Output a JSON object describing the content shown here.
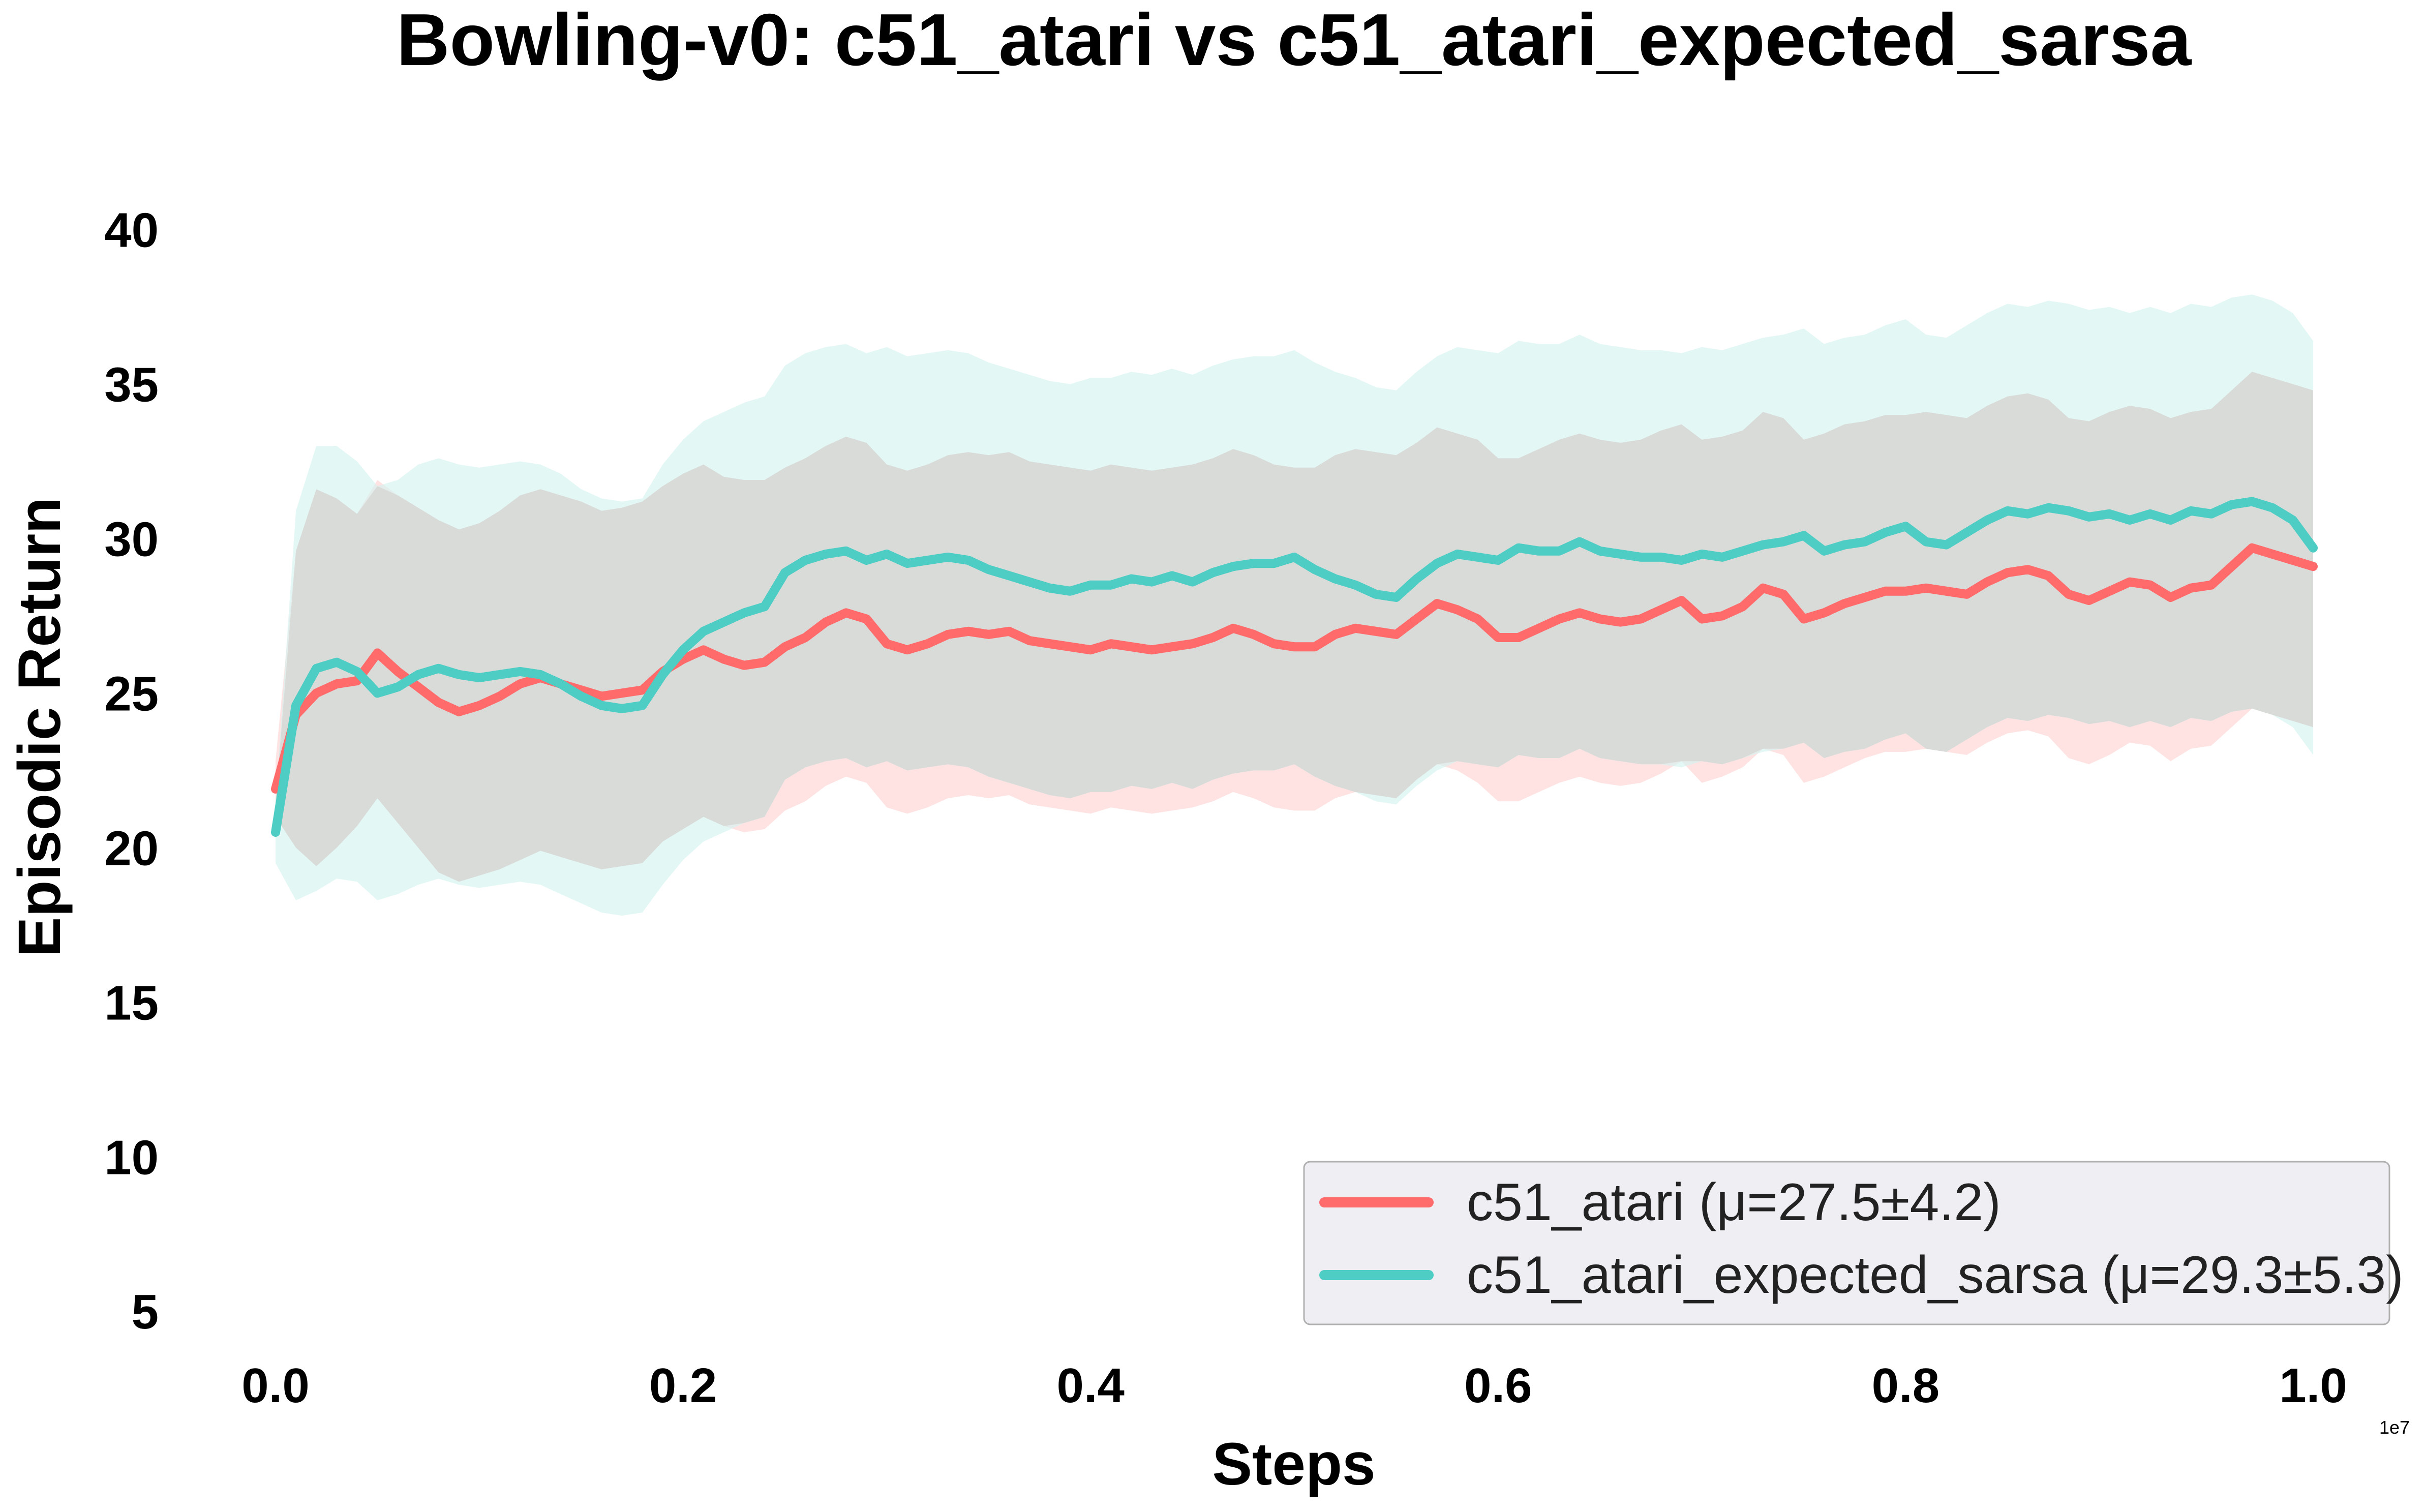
{
  "chart_data": {
    "type": "line",
    "title": "Bowling-v0: c51_atari vs c51_atari_expected_sarsa",
    "xlabel": "Steps",
    "ylabel": "Episodic Return",
    "x_exponent_label": "1e7",
    "xlim": [
      0.0,
      1.0
    ],
    "ylim": [
      4,
      42
    ],
    "x_ticks": [
      0.0,
      0.2,
      0.4,
      0.6,
      0.8,
      1.0
    ],
    "x_tick_labels": [
      "0.0",
      "0.2",
      "0.4",
      "0.6",
      "0.8",
      "1.0"
    ],
    "y_ticks": [
      5,
      10,
      15,
      20,
      25,
      30,
      35,
      40
    ],
    "y_tick_labels": [
      "5",
      "10",
      "15",
      "20",
      "25",
      "30",
      "35",
      "40"
    ],
    "grid": false,
    "legend_position": "bottom-right",
    "shaded_overlap_color": "#d9dbd9",
    "series": [
      {
        "name": "c51_atari",
        "legend_label": "c51_atari (μ=27.5±4.2)",
        "color": "#ff6b6b",
        "band_color": "#ffe0e0",
        "x": [
          0.0,
          0.01,
          0.02,
          0.03,
          0.04,
          0.05,
          0.06,
          0.07,
          0.08,
          0.09,
          0.1,
          0.11,
          0.12,
          0.13,
          0.14,
          0.15,
          0.16,
          0.17,
          0.18,
          0.19,
          0.2,
          0.21,
          0.22,
          0.23,
          0.24,
          0.25,
          0.26,
          0.27,
          0.28,
          0.29,
          0.3,
          0.31,
          0.32,
          0.33,
          0.34,
          0.35,
          0.36,
          0.37,
          0.38,
          0.39,
          0.4,
          0.41,
          0.42,
          0.43,
          0.44,
          0.45,
          0.46,
          0.47,
          0.48,
          0.49,
          0.5,
          0.51,
          0.52,
          0.53,
          0.54,
          0.55,
          0.56,
          0.57,
          0.58,
          0.59,
          0.6,
          0.61,
          0.62,
          0.63,
          0.64,
          0.65,
          0.66,
          0.67,
          0.68,
          0.69,
          0.7,
          0.71,
          0.72,
          0.73,
          0.74,
          0.75,
          0.76,
          0.77,
          0.78,
          0.79,
          0.8,
          0.81,
          0.82,
          0.83,
          0.84,
          0.85,
          0.86,
          0.87,
          0.88,
          0.89,
          0.9,
          0.91,
          0.92,
          0.93,
          0.94,
          0.95,
          0.96,
          0.97,
          0.98,
          0.99,
          1.0
        ],
        "y": [
          21.9,
          24.3,
          25.0,
          25.3,
          25.4,
          26.3,
          25.7,
          25.2,
          24.7,
          24.4,
          24.6,
          24.9,
          25.3,
          25.5,
          25.3,
          25.1,
          24.9,
          25.0,
          25.1,
          25.7,
          26.1,
          26.4,
          26.1,
          25.9,
          26.0,
          26.5,
          26.8,
          27.3,
          27.6,
          27.4,
          26.6,
          26.4,
          26.6,
          26.9,
          27.0,
          26.9,
          27.0,
          26.7,
          26.6,
          26.5,
          26.4,
          26.6,
          26.5,
          26.4,
          26.5,
          26.6,
          26.8,
          27.1,
          26.9,
          26.6,
          26.5,
          26.5,
          26.9,
          27.1,
          27.0,
          26.9,
          27.4,
          27.9,
          27.7,
          27.4,
          26.8,
          26.8,
          27.1,
          27.4,
          27.6,
          27.4,
          27.3,
          27.4,
          27.7,
          28.0,
          27.4,
          27.5,
          27.8,
          28.4,
          28.2,
          27.4,
          27.6,
          27.9,
          28.1,
          28.3,
          28.3,
          28.4,
          28.3,
          28.2,
          28.6,
          28.9,
          29.0,
          28.8,
          28.2,
          28.0,
          28.3,
          28.6,
          28.5,
          28.1,
          28.4,
          28.5,
          29.1,
          29.7,
          29.5,
          29.3,
          29.1
        ],
        "lower": [
          21.0,
          20.0,
          19.4,
          20.0,
          20.7,
          21.6,
          20.8,
          20.0,
          19.2,
          18.9,
          19.1,
          19.3,
          19.6,
          19.9,
          19.7,
          19.5,
          19.3,
          19.4,
          19.5,
          20.2,
          20.6,
          21.0,
          20.7,
          20.5,
          20.6,
          21.2,
          21.5,
          22.0,
          22.3,
          22.1,
          21.3,
          21.1,
          21.3,
          21.6,
          21.7,
          21.6,
          21.7,
          21.4,
          21.3,
          21.2,
          21.1,
          21.3,
          21.2,
          21.1,
          21.2,
          21.3,
          21.5,
          21.8,
          21.6,
          21.3,
          21.2,
          21.2,
          21.6,
          21.8,
          21.7,
          21.6,
          22.2,
          22.7,
          22.5,
          22.1,
          21.5,
          21.5,
          21.8,
          22.1,
          22.3,
          22.1,
          22.0,
          22.1,
          22.4,
          22.8,
          22.1,
          22.3,
          22.6,
          23.2,
          23.0,
          22.1,
          22.3,
          22.6,
          22.9,
          23.1,
          23.1,
          23.2,
          23.1,
          23.0,
          23.4,
          23.7,
          23.8,
          23.6,
          22.9,
          22.7,
          23.0,
          23.4,
          23.3,
          22.8,
          23.2,
          23.3,
          23.9,
          24.5,
          24.3,
          24.1,
          23.9
        ],
        "upper": [
          22.8,
          29.6,
          31.6,
          31.3,
          30.8,
          31.9,
          31.4,
          31.0,
          30.6,
          30.3,
          30.5,
          30.9,
          31.4,
          31.6,
          31.4,
          31.2,
          30.9,
          31.0,
          31.2,
          31.7,
          32.1,
          32.4,
          32.0,
          31.9,
          31.9,
          32.3,
          32.6,
          33.0,
          33.3,
          33.1,
          32.4,
          32.2,
          32.4,
          32.7,
          32.8,
          32.7,
          32.8,
          32.5,
          32.4,
          32.3,
          32.2,
          32.4,
          32.3,
          32.2,
          32.3,
          32.4,
          32.6,
          32.9,
          32.7,
          32.4,
          32.3,
          32.3,
          32.7,
          32.9,
          32.8,
          32.7,
          33.1,
          33.6,
          33.4,
          33.2,
          32.6,
          32.6,
          32.9,
          33.2,
          33.4,
          33.2,
          33.1,
          33.2,
          33.5,
          33.7,
          33.2,
          33.3,
          33.5,
          34.1,
          33.9,
          33.2,
          33.4,
          33.7,
          33.8,
          34.0,
          34.0,
          34.1,
          34.0,
          33.9,
          34.3,
          34.6,
          34.7,
          34.5,
          33.9,
          33.8,
          34.1,
          34.3,
          34.2,
          33.9,
          34.1,
          34.2,
          34.8,
          35.4,
          35.2,
          35.0,
          34.8
        ]
      },
      {
        "name": "c51_atari_expected_sarsa",
        "legend_label": "c51_atari_expected_sarsa (μ=29.3±5.3)",
        "color": "#4ecdc4",
        "band_color": "#d4f3f0",
        "x": [
          0.0,
          0.01,
          0.02,
          0.03,
          0.04,
          0.05,
          0.06,
          0.07,
          0.08,
          0.09,
          0.1,
          0.11,
          0.12,
          0.13,
          0.14,
          0.15,
          0.16,
          0.17,
          0.18,
          0.19,
          0.2,
          0.21,
          0.22,
          0.23,
          0.24,
          0.25,
          0.26,
          0.27,
          0.28,
          0.29,
          0.3,
          0.31,
          0.32,
          0.33,
          0.34,
          0.35,
          0.36,
          0.37,
          0.38,
          0.39,
          0.4,
          0.41,
          0.42,
          0.43,
          0.44,
          0.45,
          0.46,
          0.47,
          0.48,
          0.49,
          0.5,
          0.51,
          0.52,
          0.53,
          0.54,
          0.55,
          0.56,
          0.57,
          0.58,
          0.59,
          0.6,
          0.61,
          0.62,
          0.63,
          0.64,
          0.65,
          0.66,
          0.67,
          0.68,
          0.69,
          0.7,
          0.71,
          0.72,
          0.73,
          0.74,
          0.75,
          0.76,
          0.77,
          0.78,
          0.79,
          0.8,
          0.81,
          0.82,
          0.83,
          0.84,
          0.85,
          0.86,
          0.87,
          0.88,
          0.89,
          0.9,
          0.91,
          0.92,
          0.93,
          0.94,
          0.95,
          0.96,
          0.97,
          0.98,
          0.99,
          1.0
        ],
        "y": [
          20.5,
          24.6,
          25.8,
          26.0,
          25.7,
          25.0,
          25.2,
          25.6,
          25.8,
          25.6,
          25.5,
          25.6,
          25.7,
          25.6,
          25.3,
          24.9,
          24.6,
          24.5,
          24.6,
          25.6,
          26.4,
          27.0,
          27.3,
          27.6,
          27.8,
          28.9,
          29.3,
          29.5,
          29.6,
          29.3,
          29.5,
          29.2,
          29.3,
          29.4,
          29.3,
          29.0,
          28.8,
          28.6,
          28.4,
          28.3,
          28.5,
          28.5,
          28.7,
          28.6,
          28.8,
          28.6,
          28.9,
          29.1,
          29.2,
          29.2,
          29.4,
          29.0,
          28.7,
          28.5,
          28.2,
          28.1,
          28.7,
          29.2,
          29.5,
          29.4,
          29.3,
          29.7,
          29.6,
          29.6,
          29.9,
          29.6,
          29.5,
          29.4,
          29.4,
          29.3,
          29.5,
          29.4,
          29.6,
          29.8,
          29.9,
          30.1,
          29.6,
          29.8,
          29.9,
          30.2,
          30.4,
          29.9,
          29.8,
          30.2,
          30.6,
          30.9,
          30.8,
          31.0,
          30.9,
          30.7,
          30.8,
          30.6,
          30.8,
          30.6,
          30.9,
          30.8,
          31.1,
          31.2,
          31.0,
          30.6,
          29.7
        ],
        "lower": [
          19.5,
          18.3,
          18.6,
          19.0,
          18.9,
          18.3,
          18.5,
          18.8,
          19.0,
          18.8,
          18.7,
          18.8,
          18.9,
          18.8,
          18.5,
          18.2,
          17.9,
          17.8,
          17.9,
          18.8,
          19.6,
          20.2,
          20.5,
          20.8,
          21.0,
          22.2,
          22.6,
          22.8,
          22.9,
          22.6,
          22.8,
          22.5,
          22.6,
          22.7,
          22.6,
          22.3,
          22.1,
          21.9,
          21.7,
          21.6,
          21.8,
          21.8,
          22.0,
          21.9,
          22.1,
          21.9,
          22.2,
          22.4,
          22.5,
          22.5,
          22.7,
          22.3,
          22.0,
          21.8,
          21.5,
          21.4,
          22.0,
          22.5,
          22.8,
          22.7,
          22.6,
          23.0,
          22.9,
          22.9,
          23.2,
          22.9,
          22.8,
          22.7,
          22.7,
          22.6,
          22.8,
          22.7,
          22.9,
          23.1,
          23.2,
          23.4,
          22.9,
          23.1,
          23.2,
          23.5,
          23.7,
          23.2,
          23.1,
          23.5,
          23.9,
          24.2,
          24.1,
          24.3,
          24.2,
          24.0,
          24.1,
          23.9,
          24.1,
          23.9,
          24.2,
          24.1,
          24.4,
          24.5,
          24.3,
          23.9,
          23.0
        ],
        "upper": [
          21.5,
          30.9,
          33.0,
          33.0,
          32.5,
          31.7,
          31.9,
          32.4,
          32.6,
          32.4,
          32.3,
          32.4,
          32.5,
          32.4,
          32.1,
          31.6,
          31.3,
          31.2,
          31.3,
          32.4,
          33.2,
          33.8,
          34.1,
          34.4,
          34.6,
          35.6,
          36.0,
          36.2,
          36.3,
          36.0,
          36.2,
          35.9,
          36.0,
          36.1,
          36.0,
          35.7,
          35.5,
          35.3,
          35.1,
          35.0,
          35.2,
          35.2,
          35.4,
          35.3,
          35.5,
          35.3,
          35.6,
          35.8,
          35.9,
          35.9,
          36.1,
          35.7,
          35.4,
          35.2,
          34.9,
          34.8,
          35.4,
          35.9,
          36.2,
          36.1,
          36.0,
          36.4,
          36.3,
          36.3,
          36.6,
          36.3,
          36.2,
          36.1,
          36.1,
          36.0,
          36.2,
          36.1,
          36.3,
          36.5,
          36.6,
          36.8,
          36.3,
          36.5,
          36.6,
          36.9,
          37.1,
          36.6,
          36.5,
          36.9,
          37.3,
          37.6,
          37.5,
          37.7,
          37.6,
          37.4,
          37.5,
          37.3,
          37.5,
          37.3,
          37.6,
          37.5,
          37.8,
          37.9,
          37.7,
          37.3,
          36.4
        ]
      }
    ]
  }
}
